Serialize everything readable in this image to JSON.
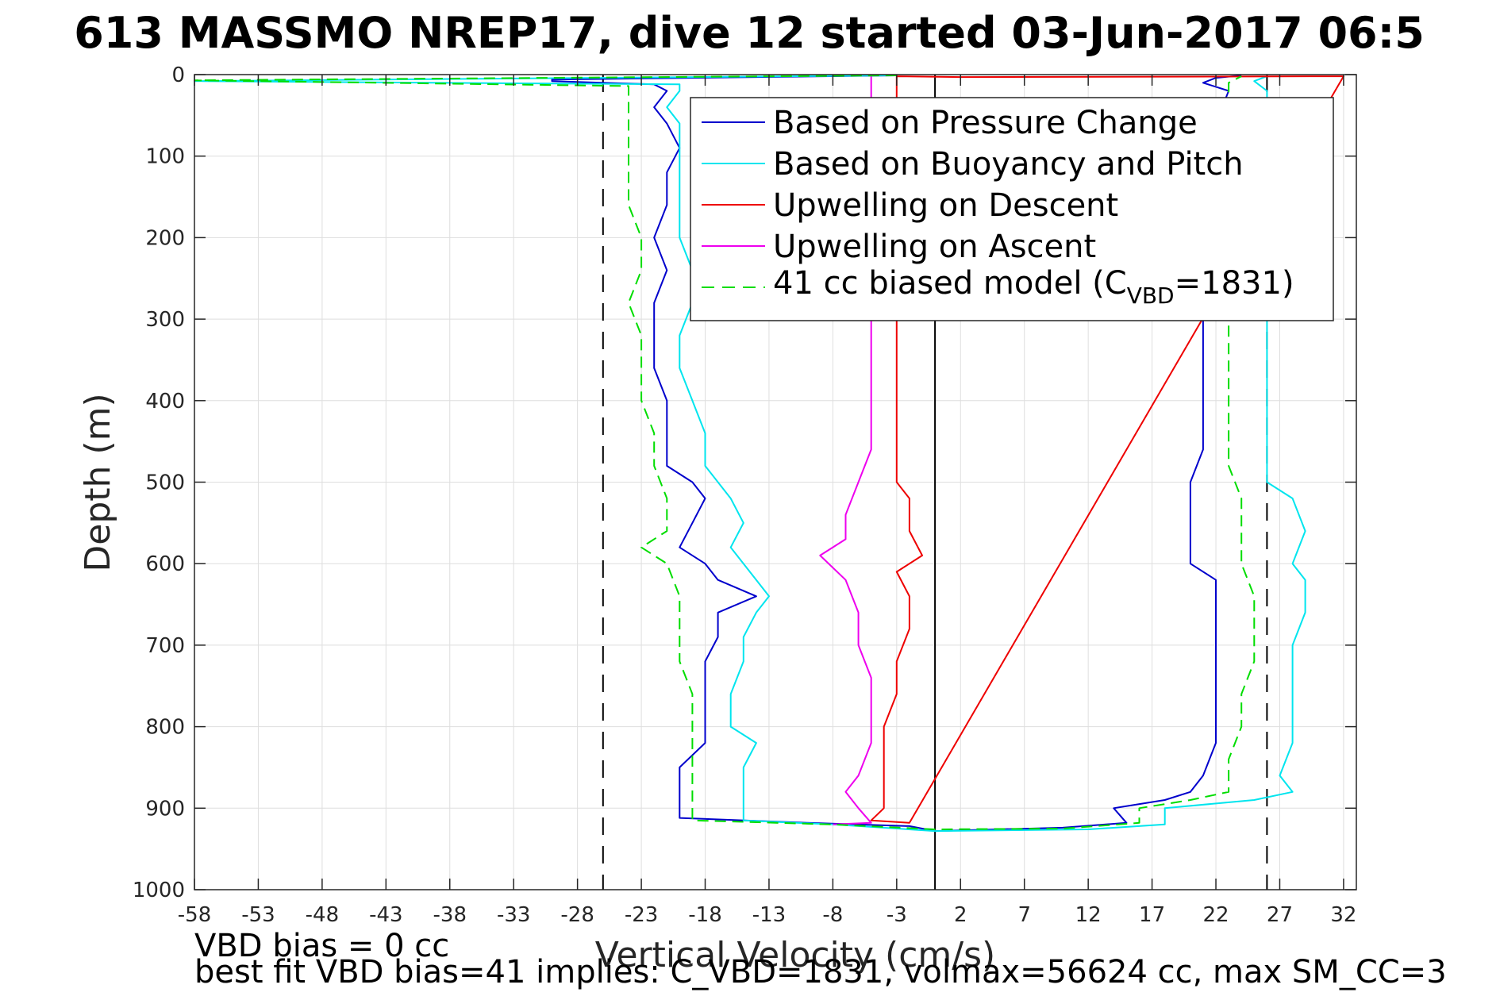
{
  "chart_data": {
    "type": "line",
    "title": "613 MASSMO NREP17, dive 12 started 03-Jun-2017 06:5",
    "xlabel": "Vertical Velocity (cm/s)",
    "ylabel": "Depth (m)",
    "xlim": [
      -58,
      33
    ],
    "ylim": [
      0,
      1000
    ],
    "y_reversed": true,
    "grid": true,
    "legend_position": "top-right",
    "xticks": [
      -58,
      -53,
      -48,
      -43,
      -38,
      -33,
      -28,
      -23,
      -18,
      -13,
      -8,
      -3,
      2,
      7,
      12,
      17,
      22,
      27,
      32
    ],
    "yticks": [
      0,
      100,
      200,
      300,
      400,
      500,
      600,
      700,
      800,
      900,
      1000
    ],
    "reference_lines": [
      {
        "name": "zero",
        "x": 0,
        "style": "solid",
        "color": "#000000"
      },
      {
        "name": "model-limit-negative",
        "x": -26,
        "style": "dashed",
        "color": "#000000"
      },
      {
        "name": "model-limit-positive",
        "x": 26,
        "style": "dashed",
        "color": "#000000"
      }
    ],
    "series": [
      {
        "name": "Based on Pressure Change",
        "color": "#0000cc",
        "style": "solid",
        "points": [
          [
            -3,
            1
          ],
          [
            -30,
            6
          ],
          [
            -30,
            8
          ],
          [
            -22,
            12
          ],
          [
            -21,
            20
          ],
          [
            -22,
            40
          ],
          [
            -21,
            60
          ],
          [
            -20,
            90
          ],
          [
            -21,
            120
          ],
          [
            -21,
            160
          ],
          [
            -22,
            200
          ],
          [
            -21,
            240
          ],
          [
            -22,
            280
          ],
          [
            -22,
            320
          ],
          [
            -22,
            360
          ],
          [
            -21,
            400
          ],
          [
            -21,
            440
          ],
          [
            -21,
            480
          ],
          [
            -19,
            500
          ],
          [
            -18,
            520
          ],
          [
            -19,
            550
          ],
          [
            -20,
            580
          ],
          [
            -18,
            600
          ],
          [
            -17,
            620
          ],
          [
            -14,
            640
          ],
          [
            -17,
            660
          ],
          [
            -17,
            690
          ],
          [
            -18,
            720
          ],
          [
            -18,
            760
          ],
          [
            -18,
            800
          ],
          [
            -18,
            820
          ],
          [
            -20,
            850
          ],
          [
            -20,
            880
          ],
          [
            -20,
            905
          ],
          [
            -20,
            912
          ],
          [
            -10,
            918
          ],
          [
            -2,
            922
          ],
          [
            0,
            928
          ],
          [
            10,
            924
          ],
          [
            15,
            918
          ],
          [
            14,
            900
          ],
          [
            18,
            890
          ],
          [
            20,
            880
          ],
          [
            21,
            860
          ],
          [
            22,
            820
          ],
          [
            22,
            780
          ],
          [
            22,
            740
          ],
          [
            22,
            700
          ],
          [
            22,
            660
          ],
          [
            22,
            620
          ],
          [
            20,
            600
          ],
          [
            20,
            580
          ],
          [
            20,
            540
          ],
          [
            20,
            500
          ],
          [
            21,
            460
          ],
          [
            21,
            420
          ],
          [
            21,
            380
          ],
          [
            21,
            340
          ],
          [
            21,
            300
          ],
          [
            22,
            250
          ],
          [
            22,
            200
          ],
          [
            22,
            150
          ],
          [
            22,
            100
          ],
          [
            22,
            60
          ],
          [
            23,
            20
          ],
          [
            21,
            10
          ],
          [
            22,
            4
          ],
          [
            24,
            1
          ]
        ]
      },
      {
        "name": "Based on Buoyancy and Pitch",
        "color": "#00e5ee",
        "style": "solid",
        "points": [
          [
            -3,
            1
          ],
          [
            -58,
            8
          ],
          [
            -20,
            12
          ],
          [
            -20,
            20
          ],
          [
            -21,
            40
          ],
          [
            -20,
            60
          ],
          [
            -20,
            90
          ],
          [
            -20,
            120
          ],
          [
            -20,
            160
          ],
          [
            -20,
            200
          ],
          [
            -19,
            240
          ],
          [
            -19,
            280
          ],
          [
            -20,
            320
          ],
          [
            -20,
            360
          ],
          [
            -19,
            400
          ],
          [
            -18,
            440
          ],
          [
            -18,
            480
          ],
          [
            -17,
            500
          ],
          [
            -16,
            520
          ],
          [
            -15,
            550
          ],
          [
            -16,
            580
          ],
          [
            -15,
            600
          ],
          [
            -14,
            620
          ],
          [
            -13,
            640
          ],
          [
            -14,
            660
          ],
          [
            -15,
            690
          ],
          [
            -15,
            720
          ],
          [
            -16,
            760
          ],
          [
            -16,
            800
          ],
          [
            -14,
            820
          ],
          [
            -15,
            850
          ],
          [
            -15,
            880
          ],
          [
            -15,
            905
          ],
          [
            -15,
            915
          ],
          [
            -8,
            920
          ],
          [
            0,
            928
          ],
          [
            12,
            926
          ],
          [
            18,
            920
          ],
          [
            18,
            900
          ],
          [
            25,
            890
          ],
          [
            28,
            880
          ],
          [
            27,
            860
          ],
          [
            28,
            820
          ],
          [
            28,
            780
          ],
          [
            28,
            740
          ],
          [
            28,
            700
          ],
          [
            29,
            660
          ],
          [
            29,
            620
          ],
          [
            28,
            600
          ],
          [
            29,
            560
          ],
          [
            28,
            520
          ],
          [
            26,
            500
          ],
          [
            26,
            460
          ],
          [
            26,
            420
          ],
          [
            26,
            380
          ],
          [
            26,
            340
          ],
          [
            26,
            300
          ],
          [
            26,
            250
          ],
          [
            26,
            200
          ],
          [
            26,
            150
          ],
          [
            26,
            100
          ],
          [
            26,
            60
          ],
          [
            26,
            20
          ],
          [
            25,
            8
          ],
          [
            26,
            2
          ]
        ]
      },
      {
        "name": "Upwelling on Descent",
        "color": "#ee0000",
        "style": "solid",
        "points": [
          [
            -3,
            2
          ],
          [
            -3,
            20
          ],
          [
            -3,
            300
          ],
          [
            -3,
            340
          ],
          [
            -3,
            380
          ],
          [
            -3,
            420
          ],
          [
            -3,
            460
          ],
          [
            -3,
            500
          ],
          [
            -2,
            520
          ],
          [
            -2,
            560
          ],
          [
            -1,
            590
          ],
          [
            -3,
            610
          ],
          [
            -2,
            640
          ],
          [
            -2,
            680
          ],
          [
            -3,
            720
          ],
          [
            -3,
            760
          ],
          [
            -4,
            800
          ],
          [
            -4,
            840
          ],
          [
            -4,
            870
          ],
          [
            -4,
            900
          ],
          [
            -5,
            915
          ],
          [
            -2,
            918
          ],
          [
            32,
            2
          ],
          [
            2,
            3
          ],
          [
            -3,
            2
          ]
        ]
      },
      {
        "name": "Upwelling on Ascent",
        "color": "#ee00ee",
        "style": "solid",
        "points": [
          [
            -5,
            2
          ],
          [
            -5,
            20
          ],
          [
            -5,
            300
          ],
          [
            -5,
            340
          ],
          [
            -5,
            380
          ],
          [
            -5,
            420
          ],
          [
            -5,
            460
          ],
          [
            -6,
            500
          ],
          [
            -7,
            540
          ],
          [
            -7,
            570
          ],
          [
            -9,
            590
          ],
          [
            -7,
            620
          ],
          [
            -6,
            660
          ],
          [
            -6,
            700
          ],
          [
            -5,
            740
          ],
          [
            -5,
            780
          ],
          [
            -5,
            820
          ],
          [
            -6,
            860
          ],
          [
            -7,
            880
          ],
          [
            -6,
            900
          ],
          [
            -5,
            918
          ],
          [
            -8,
            920
          ]
        ]
      },
      {
        "name": "41 cc biased model (C_VBD=1831)",
        "color": "#00dd00",
        "style": "dashed",
        "points": [
          [
            -3,
            1
          ],
          [
            -58,
            7
          ],
          [
            -24,
            14
          ],
          [
            -24,
            40
          ],
          [
            -24,
            80
          ],
          [
            -24,
            120
          ],
          [
            -24,
            160
          ],
          [
            -23,
            200
          ],
          [
            -23,
            240
          ],
          [
            -24,
            280
          ],
          [
            -23,
            320
          ],
          [
            -23,
            360
          ],
          [
            -23,
            400
          ],
          [
            -22,
            440
          ],
          [
            -22,
            480
          ],
          [
            -21,
            520
          ],
          [
            -21,
            560
          ],
          [
            -23,
            580
          ],
          [
            -21,
            600
          ],
          [
            -20,
            640
          ],
          [
            -20,
            680
          ],
          [
            -20,
            720
          ],
          [
            -19,
            760
          ],
          [
            -19,
            800
          ],
          [
            -19,
            840
          ],
          [
            -19,
            880
          ],
          [
            -19,
            905
          ],
          [
            -19,
            915
          ],
          [
            -8,
            920
          ],
          [
            0,
            926
          ],
          [
            10,
            925
          ],
          [
            16,
            918
          ],
          [
            16,
            900
          ],
          [
            20,
            890
          ],
          [
            23,
            880
          ],
          [
            23,
            840
          ],
          [
            24,
            800
          ],
          [
            24,
            760
          ],
          [
            25,
            720
          ],
          [
            25,
            680
          ],
          [
            25,
            640
          ],
          [
            24,
            600
          ],
          [
            24,
            560
          ],
          [
            24,
            520
          ],
          [
            23,
            480
          ],
          [
            23,
            440
          ],
          [
            23,
            400
          ],
          [
            23,
            360
          ],
          [
            23,
            320
          ],
          [
            23,
            280
          ],
          [
            23,
            240
          ],
          [
            23,
            200
          ],
          [
            23,
            160
          ],
          [
            23,
            120
          ],
          [
            23,
            80
          ],
          [
            23,
            40
          ],
          [
            23,
            10
          ],
          [
            24,
            2
          ]
        ]
      }
    ]
  },
  "legend": {
    "entries": [
      {
        "text": "Based on Pressure Change",
        "color": "#0000cc",
        "style": "solid"
      },
      {
        "text": "Based on Buoyancy and Pitch",
        "color": "#00e5ee",
        "style": "solid"
      },
      {
        "text": "Upwelling on Descent",
        "color": "#ee0000",
        "style": "solid"
      },
      {
        "text": "Upwelling on Ascent",
        "color": "#ee00ee",
        "style": "solid"
      }
    ],
    "model_entry": {
      "prefix": "41 cc biased model (C",
      "subscript": "VBD",
      "suffix": "=1831)",
      "color": "#00dd00"
    }
  },
  "annotations": {
    "bias_line1": "VBD bias = 0 cc",
    "bias_line2": "best fit VBD bias=41 implies: C_VBD=1831, volmax=56624 cc, max SM_CC=3"
  }
}
